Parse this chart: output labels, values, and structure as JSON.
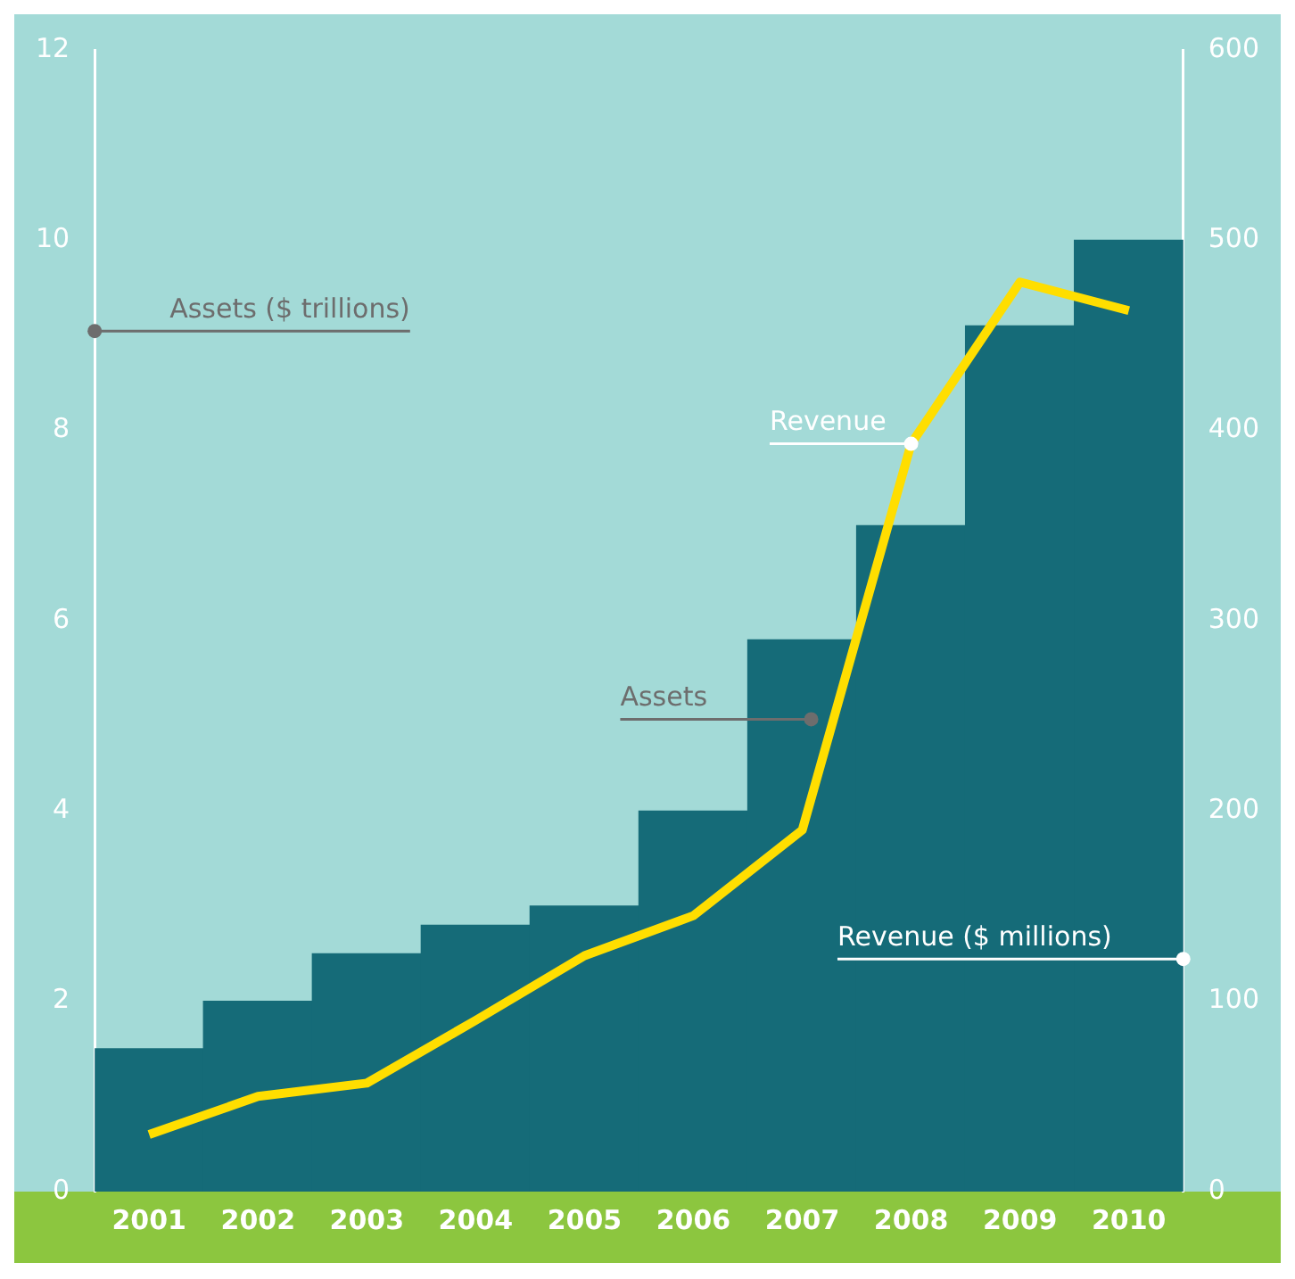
{
  "chart_data": {
    "type": "bar",
    "categories": [
      "2001",
      "2002",
      "2003",
      "2004",
      "2005",
      "2006",
      "2007",
      "2008",
      "2009",
      "2010"
    ],
    "ylabel": "Assets ($ trillions)",
    "y2label": "Revenue ($ millions)",
    "series": [
      {
        "name": "Assets",
        "color": "#156b78",
        "values": [
          1.5,
          2.0,
          2.5,
          2.8,
          3.0,
          4.0,
          5.8,
          7.0,
          9.1,
          10.0
        ]
      },
      {
        "name": "Revenue",
        "type": "line",
        "axis": "y2",
        "color": "#ffde00",
        "values": [
          30,
          50,
          57,
          90,
          124,
          145,
          190,
          393,
          478,
          463
        ]
      }
    ],
    "ylim": [
      0,
      12
    ],
    "yticks": [
      0,
      2,
      4,
      6,
      8,
      10,
      12
    ],
    "y2lim": [
      0,
      600
    ],
    "y2ticks": [
      0,
      100,
      200,
      300,
      400,
      500,
      600
    ],
    "grid": false,
    "marker": "none"
  }
}
